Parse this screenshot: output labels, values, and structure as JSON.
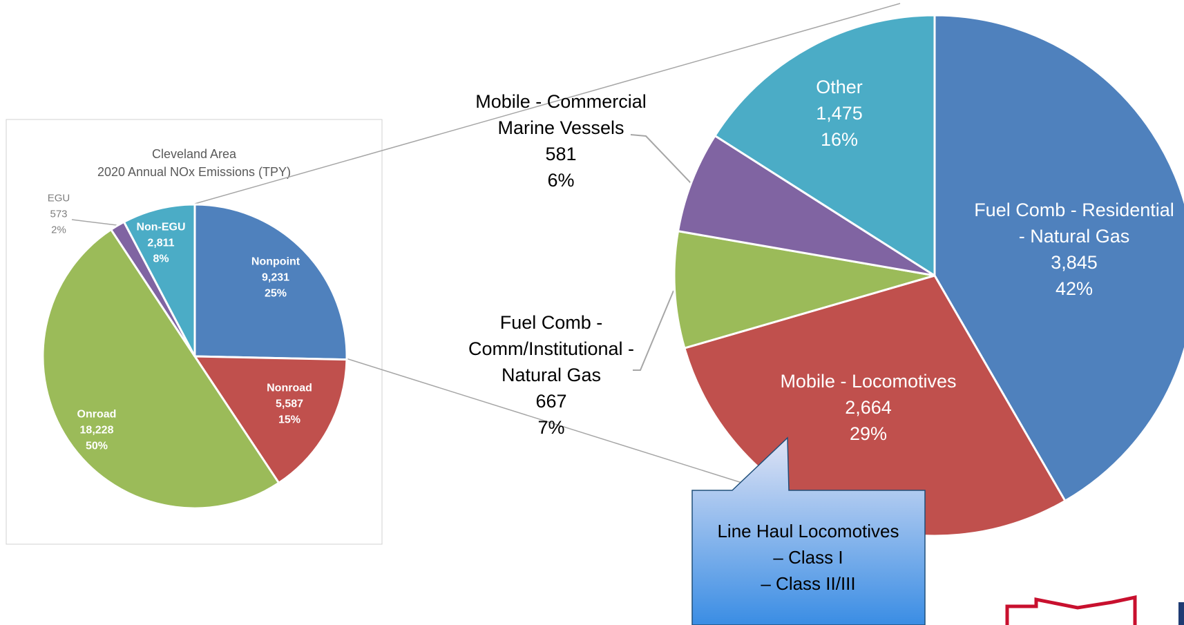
{
  "chart_data": [
    {
      "type": "pie",
      "title": "Cleveland Area",
      "subtitle": "2020 Annual NOx Emissions (TPY)",
      "categories": [
        "Nonpoint",
        "Nonroad",
        "Onroad",
        "EGU",
        "Non-EGU"
      ],
      "values": [
        9231,
        5587,
        18228,
        573,
        2811
      ],
      "value_labels": [
        "9,231",
        "5,587",
        "18,228",
        "573",
        "2,811"
      ],
      "percent_labels": [
        "25%",
        "15%",
        "50%",
        "2%",
        "8%"
      ],
      "colors": [
        "#4f81bd",
        "#c0504d",
        "#9bbb59",
        "#8064a2",
        "#4bacc6"
      ]
    },
    {
      "type": "pie",
      "categories": [
        "Fuel Comb - Residential - Natural Gas",
        "Mobile - Locomotives",
        "Fuel Comb - Comm/Institutional - Natural Gas",
        "Mobile - Commercial Marine Vessels",
        "Other"
      ],
      "values": [
        3845,
        2664,
        667,
        581,
        1475
      ],
      "value_labels": [
        "3,845",
        "2,664",
        "667",
        "581",
        "1,475"
      ],
      "percent_labels": [
        "42%",
        "29%",
        "7%",
        "6%",
        "16%"
      ],
      "colors": [
        "#4f81bd",
        "#c0504d",
        "#9bbb59",
        "#8064a2",
        "#4bacc6"
      ]
    }
  ],
  "callout": {
    "lines": [
      "Line Haul Locomotives",
      "– Class I",
      "– Class II/III"
    ]
  }
}
